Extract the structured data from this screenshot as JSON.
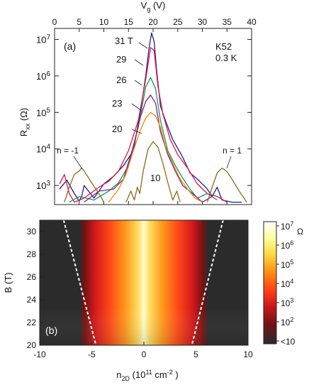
{
  "chart_data": [
    {
      "panel_label": "(a)",
      "type": "line",
      "sample": "K52",
      "temperature": "0.3 K",
      "top_axis": {
        "label": "V",
        "label_sub": "g",
        "label_unit": " (V)",
        "ticks": [
          "0",
          "5",
          "10",
          "15",
          "20",
          "25",
          "30",
          "35",
          "40"
        ],
        "lim": [
          0,
          40
        ]
      },
      "y_axis": {
        "label": "R",
        "label_sub": "xx",
        "label_unit": " (Ω)",
        "scale": "log",
        "lim": [
          300,
          20000000
        ],
        "ticks": [
          {
            "mant": "10",
            "exp": "3"
          },
          {
            "mant": "10",
            "exp": "4"
          },
          {
            "mant": "10",
            "exp": "5"
          },
          {
            "mant": "10",
            "exp": "6"
          },
          {
            "mant": "10",
            "exp": "7"
          }
        ]
      },
      "annotations": {
        "n_minus": "n = -1",
        "n_plus": "n = 1"
      },
      "series": [
        {
          "name": "31 T",
          "color": "#1e1e8c",
          "x": [
            1,
            2.5,
            4,
            5,
            5.5,
            6,
            8,
            10,
            12,
            14,
            16,
            17.5,
            18.5,
            19.2,
            19.7,
            20.2,
            20.7,
            21.5,
            22.5,
            24,
            26,
            27.5,
            29,
            31,
            32,
            33,
            34,
            36,
            38
          ],
          "y": [
            800,
            1400,
            600,
            380,
            500,
            1000,
            450,
            1100,
            1800,
            3500,
            9000,
            120000,
            1000000,
            6000000,
            15000000,
            9000000,
            1500000,
            150000,
            60000,
            18000,
            6000,
            2200,
            1500,
            800,
            500,
            900,
            400,
            350,
            350
          ]
        },
        {
          "name": "29",
          "color": "#e0154a",
          "x": [
            1,
            2,
            3,
            4,
            6,
            9,
            11,
            13,
            15,
            17,
            18.5,
            19.5,
            20.2,
            21,
            22,
            23.5,
            25,
            27,
            29,
            31,
            33,
            35
          ],
          "y": [
            1100,
            2000,
            600,
            350,
            450,
            900,
            1300,
            2500,
            9000,
            60000,
            800000,
            6000000,
            5000000,
            500000,
            90000,
            18000,
            7000,
            3000,
            1100,
            600,
            500,
            350
          ]
        },
        {
          "name": "26",
          "color": "#149a56",
          "x": [
            3,
            5,
            8,
            11,
            13,
            15,
            17,
            18.5,
            19.5,
            20.5,
            21.5,
            23,
            24.5,
            26,
            27.5,
            29,
            31,
            33
          ],
          "y": [
            350,
            500,
            400,
            700,
            1200,
            3500,
            40000,
            500000,
            900000,
            450000,
            60000,
            9000,
            3500,
            1600,
            800,
            450,
            600,
            400
          ]
        },
        {
          "name": "23",
          "color": "#8a1a8a",
          "x": [
            6,
            9,
            12,
            14,
            16,
            17.5,
            18.5,
            19.5,
            20.5,
            21.5,
            23,
            24.5,
            26,
            28,
            30,
            32
          ],
          "y": [
            350,
            700,
            800,
            1500,
            12000,
            80000,
            200000,
            300000,
            180000,
            30000,
            7000,
            2500,
            1000,
            600,
            350,
            500
          ]
        },
        {
          "name": "20",
          "color": "#f28a00",
          "x": [
            11,
            13,
            14.5,
            16,
            17.5,
            18.5,
            19.5,
            20.5,
            21.5,
            22.5,
            24,
            25.5,
            27,
            28.5,
            30
          ],
          "y": [
            350,
            800,
            2000,
            9000,
            35000,
            70000,
            100000,
            80000,
            40000,
            12000,
            4000,
            1500,
            800,
            450,
            350
          ]
        },
        {
          "name": "10",
          "color": "#8c6a1e",
          "x": [
            14.5,
            15.5,
            16.2,
            16.8,
            17.3,
            18,
            19,
            20,
            21,
            22,
            23,
            24,
            24.8,
            25.5
          ],
          "y": [
            350,
            700,
            400,
            900,
            600,
            2500,
            10000,
            16000,
            11000,
            4000,
            1200,
            400,
            700,
            350
          ]
        },
        {
          "name": "",
          "color": "#8c6a1e",
          "x": [
            2,
            3,
            4,
            5,
            5.5,
            6,
            7.5,
            9,
            10
          ],
          "y": [
            350,
            900,
            2000,
            2500,
            3000,
            2500,
            1200,
            600,
            350
          ]
        },
        {
          "name": "",
          "color": "#8c6a1e",
          "x": [
            31,
            32,
            33,
            34,
            35,
            36,
            37.5,
            39
          ],
          "y": [
            350,
            900,
            2200,
            3000,
            2400,
            1500,
            700,
            350
          ]
        }
      ]
    },
    {
      "panel_label": "(b)",
      "type": "heatmap",
      "x_axis": {
        "label": "n",
        "label_sub": "2D",
        "label_unit": " (10",
        "label_exp": "11",
        "label_unit2": " cm",
        "label_exp2": "-2",
        "label_close": " )",
        "ticks": [
          "-10",
          "-5",
          "0",
          "5",
          "10"
        ],
        "lim": [
          -10,
          10
        ]
      },
      "y_axis": {
        "label": "B (T)",
        "ticks": [
          "20",
          "22",
          "24",
          "26",
          "28",
          "30"
        ],
        "lim": [
          20,
          31
        ]
      },
      "colorbar": {
        "scale": "log",
        "unit": "Ω",
        "ticks": [
          {
            "mant": "10",
            "exp": "7"
          },
          {
            "mant": "10",
            "exp": "6"
          },
          {
            "mant": "10",
            "exp": "5"
          },
          {
            "mant": "10",
            "exp": "4"
          },
          {
            "mant": "10",
            "exp": "3"
          },
          {
            "mant": "10",
            "exp": "2"
          },
          {
            "mant": "<10",
            "exp": ""
          }
        ],
        "colors": [
          "#ffffff",
          "#ffff9a",
          "#ffd23c",
          "#ff8a12",
          "#ff3c16",
          "#c0161a",
          "#6e1414",
          "#2b2b2b"
        ]
      },
      "dashed_lines": [
        {
          "x": [
            -7.7,
            -4.6
          ],
          "y": [
            31,
            20
          ]
        },
        {
          "x": [
            7.6,
            4.6
          ],
          "y": [
            31,
            20
          ]
        }
      ]
    }
  ]
}
